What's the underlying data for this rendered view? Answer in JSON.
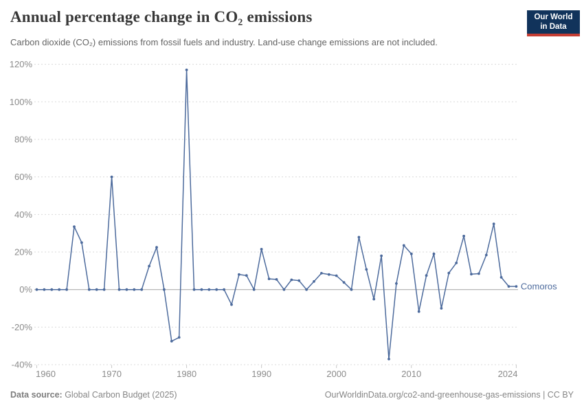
{
  "header": {
    "title": "Annual percentage change in CO₂ emissions",
    "subtitle": "Carbon dioxide (CO₂) emissions from fossil fuels and industry. Land-use change emissions are not included.",
    "logo": {
      "line1": "Our World",
      "line2": "in Data"
    }
  },
  "chart_data": {
    "type": "line",
    "title": "Annual percentage change in CO₂ emissions",
    "xlabel": "",
    "ylabel": "",
    "ylim": [
      -40,
      120
    ],
    "yticks": [
      -40,
      -20,
      0,
      20,
      40,
      60,
      80,
      100,
      120
    ],
    "ytick_suffix": "%",
    "xticks": [
      1960,
      1970,
      1980,
      1990,
      2000,
      2010,
      2024
    ],
    "grid": "horizontal-dashed",
    "zero_line": true,
    "legend_position": "end-of-line",
    "years": [
      1960,
      1961,
      1962,
      1963,
      1964,
      1965,
      1966,
      1967,
      1968,
      1969,
      1970,
      1971,
      1972,
      1973,
      1974,
      1975,
      1976,
      1977,
      1978,
      1979,
      1980,
      1981,
      1982,
      1983,
      1984,
      1985,
      1986,
      1987,
      1988,
      1989,
      1990,
      1991,
      1992,
      1993,
      1994,
      1995,
      1996,
      1997,
      1998,
      1999,
      2000,
      2001,
      2002,
      2003,
      2004,
      2005,
      2006,
      2007,
      2008,
      2009,
      2010,
      2011,
      2012,
      2013,
      2014,
      2015,
      2016,
      2017,
      2018,
      2019,
      2020,
      2021,
      2022,
      2023,
      2024
    ],
    "series": [
      {
        "name": "Comoros",
        "values": [
          0,
          0,
          0,
          0,
          0,
          33.5,
          25,
          0,
          0,
          0,
          60,
          0,
          0,
          0,
          0,
          12.5,
          22.5,
          0,
          -27.5,
          -25.5,
          117,
          0,
          0,
          0,
          0,
          0,
          -8,
          8,
          7.5,
          0,
          21.5,
          5.7,
          5.4,
          0,
          5.2,
          4.8,
          0,
          4.3,
          8.7,
          8,
          7.4,
          3.8,
          0,
          27.9,
          10.7,
          -5.1,
          18,
          -37,
          3.2,
          23.5,
          19,
          -11.7,
          7.5,
          19,
          -10,
          8.8,
          14.2,
          28.5,
          8.2,
          8.5,
          18.4,
          35,
          6.5,
          1.7,
          1.7
        ]
      }
    ]
  },
  "colors": {
    "line": "#4C6A9C",
    "grid": "#d9d9d9",
    "zero_line": "#a3a3a3",
    "axis_text": "#8b8b8b",
    "tick_mark": "#c8c8c8",
    "logo_navy": "#11335b",
    "logo_red": "#c53d33"
  },
  "footer": {
    "source_label": "Data source:",
    "source_value": " Global Carbon Budget (2025)",
    "citation": "OurWorldinData.org/co2-and-greenhouse-gas-emissions | CC BY"
  }
}
